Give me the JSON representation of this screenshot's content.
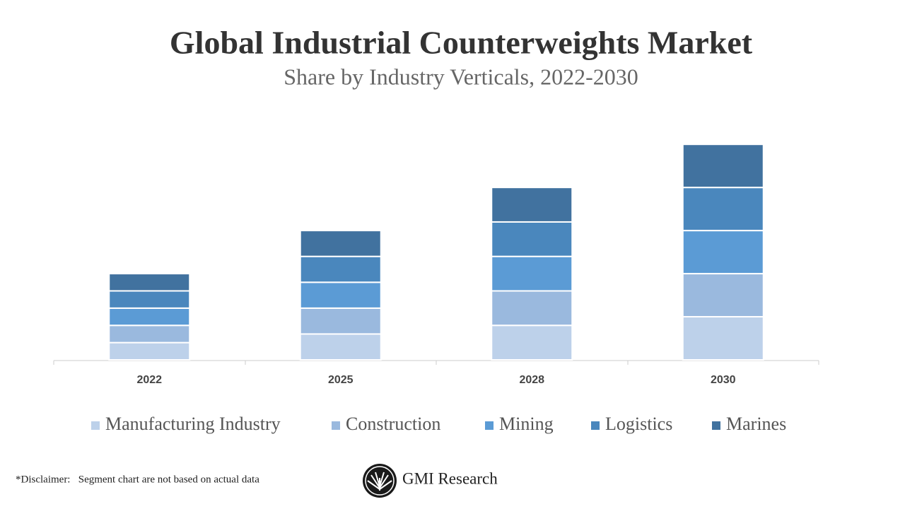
{
  "chart_data": {
    "type": "stacked_bar",
    "title": "Global Industrial Counterweights Market",
    "subtitle": "Share by Industry Verticals, 2022-2030",
    "categories": [
      "2022",
      "2025",
      "2028",
      "2030"
    ],
    "series": [
      {
        "name": "Manufacturing Industry",
        "color": "#bdd1ea",
        "values": [
          2,
          3,
          4,
          5
        ]
      },
      {
        "name": "Construction",
        "color": "#9ab9de",
        "values": [
          2,
          3,
          4,
          5
        ]
      },
      {
        "name": "Mining",
        "color": "#5b9bd5",
        "values": [
          2,
          3,
          4,
          5
        ]
      },
      {
        "name": "Logistics",
        "color": "#4a87bd",
        "values": [
          2,
          3,
          4,
          5
        ]
      },
      {
        "name": "Marines",
        "color": "#41729f",
        "values": [
          2,
          3,
          4,
          5
        ]
      }
    ],
    "ylim": [
      0,
      26
    ]
  },
  "footer": {
    "disclaimer": "*Disclaimer:   Segment chart are not based on actual data",
    "brand": "GMI Research"
  }
}
